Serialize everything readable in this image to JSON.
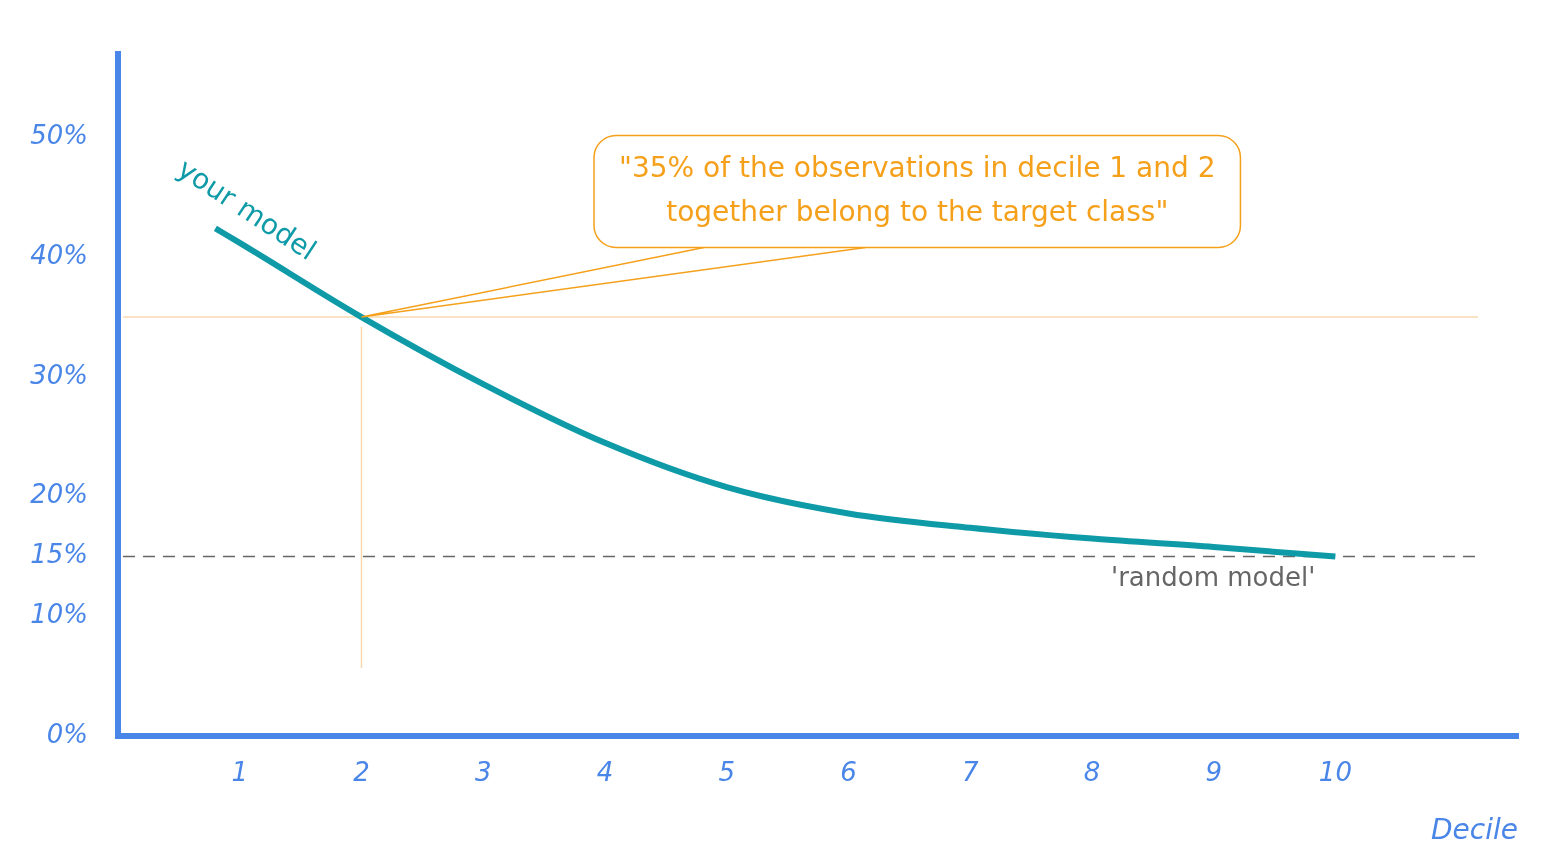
{
  "chart_data": {
    "type": "line",
    "xlabel": "Decile",
    "x": [
      0.8,
      1,
      2,
      3,
      4,
      5,
      6,
      7,
      8,
      9,
      10
    ],
    "series": [
      {
        "name": "your model",
        "color": "#0e9aa7",
        "values": [
          42.4,
          41.2,
          35,
          29.4,
          24.5,
          20.8,
          18.6,
          17.4,
          16.5,
          15.8,
          15
        ]
      }
    ],
    "xlim": [
      0,
      11.5
    ],
    "ylim": [
      0,
      57
    ],
    "xticks": [
      1,
      2,
      3,
      4,
      5,
      6,
      7,
      8,
      9,
      10
    ],
    "yticks": [
      {
        "value": 0,
        "label": "0%"
      },
      {
        "value": 10,
        "label": "10%"
      },
      {
        "value": 15,
        "label": "15%"
      },
      {
        "value": 20,
        "label": "20%"
      },
      {
        "value": 30,
        "label": "30%"
      },
      {
        "value": 40,
        "label": "40%"
      },
      {
        "value": 50,
        "label": "50%"
      }
    ],
    "ref_lines": [
      {
        "axis": "y",
        "value": 15,
        "label": "'random model'",
        "color": "#666666",
        "line_style": "dashed"
      },
      {
        "axis": "y",
        "value": 35,
        "color": "#fbd9b0",
        "line_style": "solid"
      },
      {
        "axis": "x",
        "value": 2,
        "color": "#fbd9b0",
        "line_style": "solid"
      }
    ],
    "annotations": [
      "\"35% of the observations in decile 1 and 2 together belong to the target class\""
    ],
    "grid": false,
    "legend": false,
    "marker": "none",
    "line_style": "solid"
  }
}
